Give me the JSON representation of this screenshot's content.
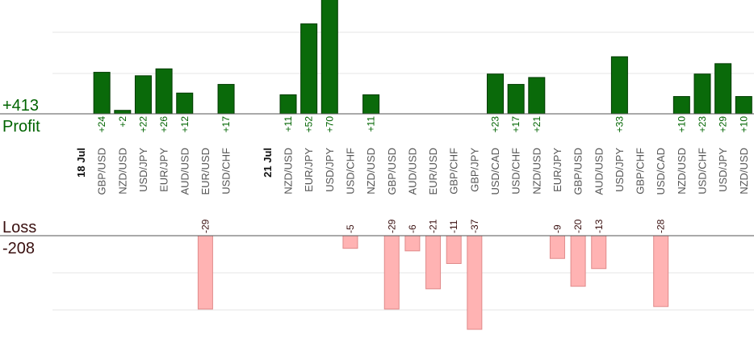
{
  "summary": {
    "profit_total": "+413",
    "profit_label": "Profit",
    "loss_label": "Loss",
    "loss_total": "-208"
  },
  "colors": {
    "profit_bar": "#0a6a0a",
    "profit_bar_edge": "#003a00",
    "profit_text": "#006400",
    "loss_bar": "#ffb3b3",
    "loss_bar_edge": "#e08a8a",
    "loss_text": "#3a1010",
    "axis": "#555555",
    "grid": "#e6e6e6"
  },
  "chart_data": {
    "type": "bar",
    "title": "",
    "profit_ylim": [
      0,
      70
    ],
    "loss_ylim": [
      0,
      37
    ],
    "grid": true,
    "slots": [
      {
        "kind": "date",
        "label": "18 Jul"
      },
      {
        "kind": "trade",
        "pair": "GBP/USD",
        "value": 24,
        "label": "+24"
      },
      {
        "kind": "trade",
        "pair": "NZD/USD",
        "value": 2,
        "label": "+2"
      },
      {
        "kind": "trade",
        "pair": "USD/JPY",
        "value": 22,
        "label": "+22"
      },
      {
        "kind": "trade",
        "pair": "EUR/JPY",
        "value": 26,
        "label": "+26"
      },
      {
        "kind": "trade",
        "pair": "AUD/USD",
        "value": 12,
        "label": "+12"
      },
      {
        "kind": "trade",
        "pair": "EUR/USD",
        "value": -29,
        "label": "-29"
      },
      {
        "kind": "trade",
        "pair": "USD/CHF",
        "value": 17,
        "label": "+17"
      },
      {
        "kind": "gap"
      },
      {
        "kind": "date",
        "label": "21 Jul"
      },
      {
        "kind": "trade",
        "pair": "NZD/USD",
        "value": 11,
        "label": "+11"
      },
      {
        "kind": "trade",
        "pair": "EUR/JPY",
        "value": 52,
        "label": "+52"
      },
      {
        "kind": "trade",
        "pair": "USD/JPY",
        "value": 70,
        "label": "+70"
      },
      {
        "kind": "trade",
        "pair": "USD/CHF",
        "value": -5,
        "label": "-5"
      },
      {
        "kind": "trade",
        "pair": "NZD/USD",
        "value": 11,
        "label": "+11"
      },
      {
        "kind": "trade",
        "pair": "GBP/USD",
        "value": -29,
        "label": "-29"
      },
      {
        "kind": "trade",
        "pair": "AUD/USD",
        "value": -6,
        "label": "-6"
      },
      {
        "kind": "trade",
        "pair": "EUR/USD",
        "value": -21,
        "label": "-21"
      },
      {
        "kind": "trade",
        "pair": "GBP/CHF",
        "value": -11,
        "label": "-11"
      },
      {
        "kind": "trade",
        "pair": "GBP/JPY",
        "value": -37,
        "label": "-37"
      },
      {
        "kind": "trade",
        "pair": "USD/CAD",
        "value": 23,
        "label": "+23"
      },
      {
        "kind": "trade",
        "pair": "USD/CHF",
        "value": 17,
        "label": "+17"
      },
      {
        "kind": "trade",
        "pair": "NZD/USD",
        "value": 21,
        "label": "+21"
      },
      {
        "kind": "trade",
        "pair": "EUR/JPY",
        "value": -9,
        "label": "-9"
      },
      {
        "kind": "trade",
        "pair": "GBP/USD",
        "value": -20,
        "label": "-20"
      },
      {
        "kind": "trade",
        "pair": "AUD/USD",
        "value": -13,
        "label": "-13"
      },
      {
        "kind": "trade",
        "pair": "USD/JPY",
        "value": 33,
        "label": "+33"
      },
      {
        "kind": "trade",
        "pair": "GBP/CHF",
        "value": 0,
        "label": ""
      },
      {
        "kind": "trade",
        "pair": "USD/CAD",
        "value": -28,
        "label": "-28"
      },
      {
        "kind": "trade",
        "pair": "NZD/USD",
        "value": 10,
        "label": "+10"
      },
      {
        "kind": "trade",
        "pair": "USD/CHF",
        "value": 23,
        "label": "+23"
      },
      {
        "kind": "trade",
        "pair": "USD/JPY",
        "value": 29,
        "label": "+29"
      },
      {
        "kind": "trade",
        "pair": "NZD/USD",
        "value": 10,
        "label": "+10"
      }
    ]
  }
}
